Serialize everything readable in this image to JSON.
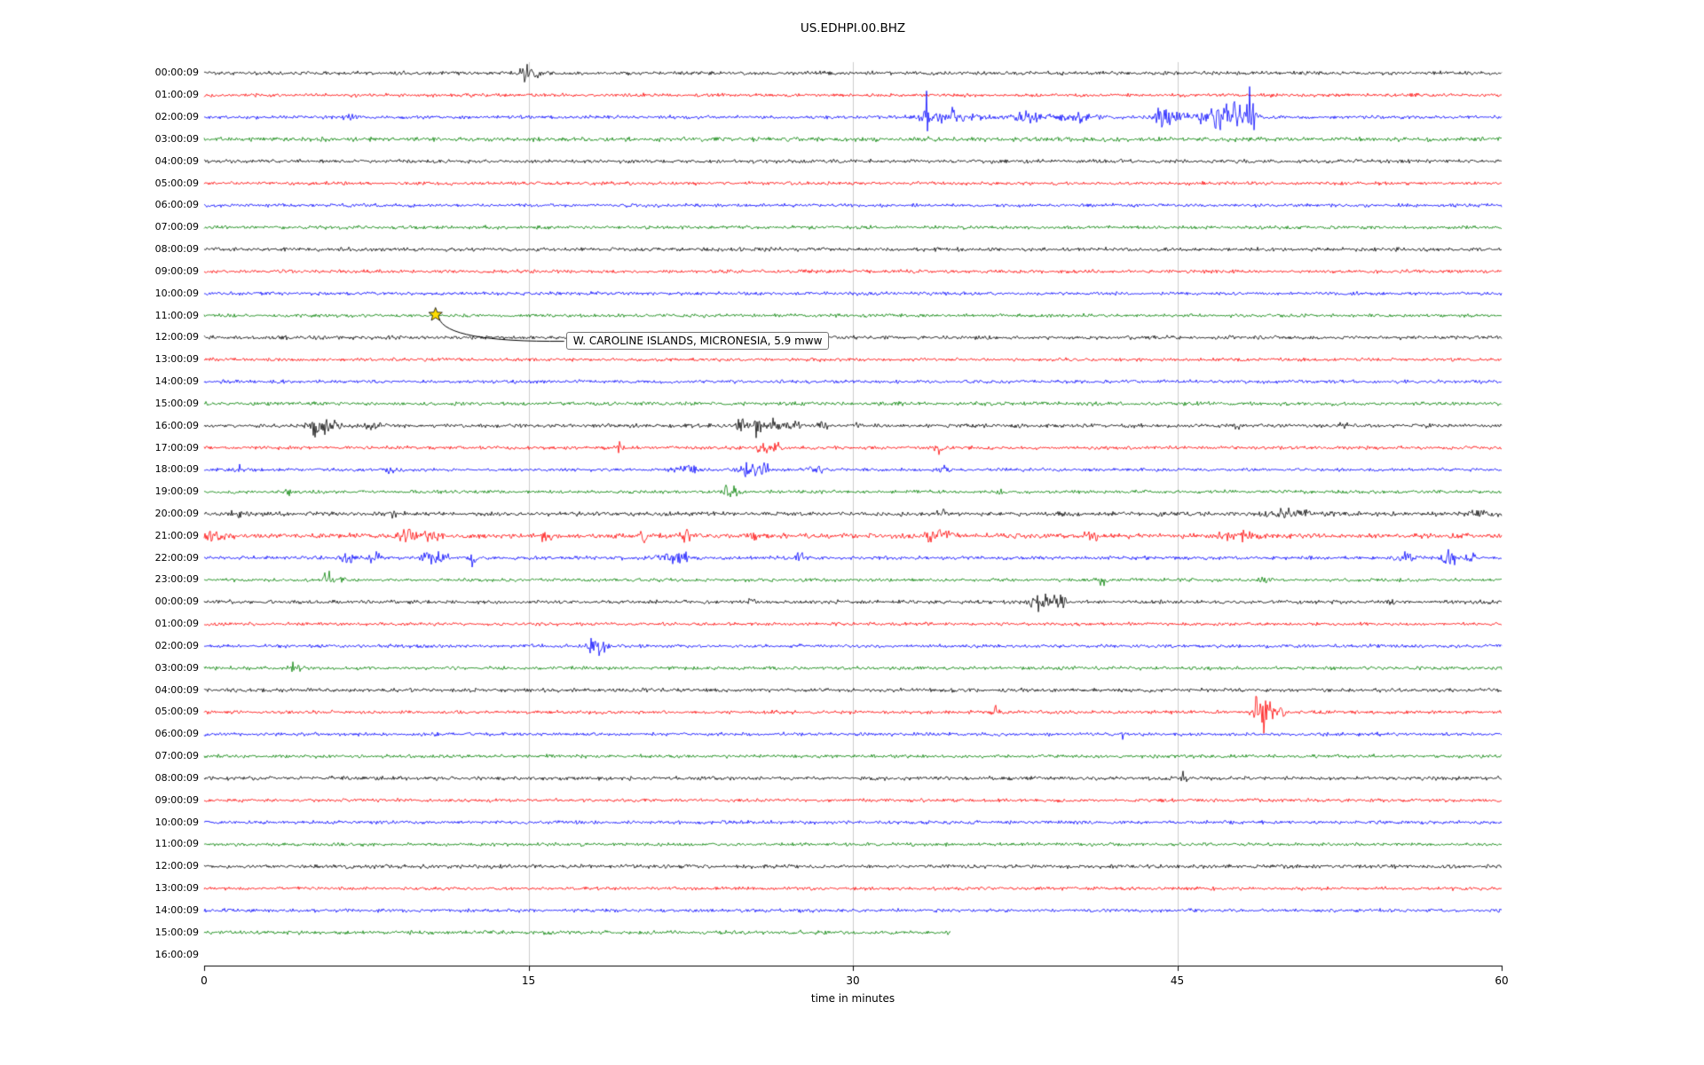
{
  "page_title": "US.EDHPI.00.BHZ",
  "chart_data": {
    "type": "line",
    "subtype": "helicorder-seismogram-dayplot",
    "title": "US.EDHPI.00.BHZ",
    "xlabel": "time in minutes",
    "xlim": [
      0,
      60
    ],
    "xticks": [
      0,
      15,
      30,
      45,
      60
    ],
    "grid": "vertical-light",
    "color_cycle": [
      "#000000",
      "#ff0000",
      "#0000ff",
      "#008000"
    ],
    "annotation": {
      "text": "W. CAROLINE ISLANDS, MICRONESIA, 5.9 mww",
      "marker": "yellow-star",
      "marker_color": "#ffdd00",
      "marker_row_index": 11,
      "marker_x_minutes": 10.7
    },
    "rows": [
      {
        "label": "00:00:09",
        "color": "#000000",
        "noise": 2.0,
        "end": 60,
        "events": [
          [
            14.9,
            0.5,
            10
          ],
          [
            15.35,
            0.3,
            6
          ]
        ]
      },
      {
        "label": "01:00:09",
        "color": "#ff0000",
        "noise": 1.8,
        "end": 60,
        "events": []
      },
      {
        "label": "02:00:09",
        "color": "#0000ff",
        "noise": 1.8,
        "end": 60,
        "events": [
          [
            6.7,
            0.6,
            4
          ],
          [
            33.4,
            0.25,
            24
          ],
          [
            34.5,
            2.5,
            7
          ],
          [
            38.2,
            1.5,
            5
          ],
          [
            40.5,
            2.0,
            4
          ],
          [
            44.3,
            0.8,
            12
          ],
          [
            45.5,
            1.5,
            6
          ],
          [
            47.3,
            1.8,
            16
          ],
          [
            48.4,
            0.4,
            26
          ]
        ]
      },
      {
        "label": "03:00:09",
        "color": "#008000",
        "noise": 2.3,
        "end": 60,
        "events": []
      },
      {
        "label": "04:00:09",
        "color": "#000000",
        "noise": 2.0,
        "end": 60,
        "events": []
      },
      {
        "label": "05:00:09",
        "color": "#ff0000",
        "noise": 1.8,
        "end": 60,
        "events": []
      },
      {
        "label": "06:00:09",
        "color": "#0000ff",
        "noise": 1.8,
        "end": 60,
        "events": []
      },
      {
        "label": "07:00:09",
        "color": "#008000",
        "noise": 1.8,
        "end": 60,
        "events": []
      },
      {
        "label": "08:00:09",
        "color": "#000000",
        "noise": 2.0,
        "end": 60,
        "events": []
      },
      {
        "label": "09:00:09",
        "color": "#ff0000",
        "noise": 1.8,
        "end": 60,
        "events": []
      },
      {
        "label": "10:00:09",
        "color": "#0000ff",
        "noise": 1.8,
        "end": 60,
        "events": []
      },
      {
        "label": "11:00:09",
        "color": "#008000",
        "noise": 1.8,
        "end": 60,
        "events": []
      },
      {
        "label": "12:00:09",
        "color": "#000000",
        "noise": 2.0,
        "end": 60,
        "events": []
      },
      {
        "label": "13:00:09",
        "color": "#ff0000",
        "noise": 1.8,
        "end": 60,
        "events": []
      },
      {
        "label": "14:00:09",
        "color": "#0000ff",
        "noise": 1.8,
        "end": 60,
        "events": []
      },
      {
        "label": "15:00:09",
        "color": "#008000",
        "noise": 2.0,
        "end": 60,
        "events": []
      },
      {
        "label": "16:00:09",
        "color": "#000000",
        "noise": 2.0,
        "end": 60,
        "events": [
          [
            5.0,
            0.3,
            22
          ],
          [
            5.6,
            1.2,
            6
          ],
          [
            7.8,
            0.6,
            5
          ],
          [
            24.8,
            0.5,
            8
          ],
          [
            25.6,
            0.4,
            12
          ],
          [
            26.3,
            0.5,
            10
          ],
          [
            27.2,
            0.8,
            6
          ],
          [
            28.6,
            0.4,
            5
          ],
          [
            30.2,
            0.3,
            4
          ],
          [
            47.8,
            0.4,
            4
          ],
          [
            52.6,
            0.4,
            4
          ]
        ]
      },
      {
        "label": "17:00:09",
        "color": "#ff0000",
        "noise": 1.8,
        "end": 60,
        "events": [
          [
            19.2,
            0.3,
            5
          ],
          [
            25.8,
            0.5,
            9
          ],
          [
            26.5,
            0.5,
            5
          ],
          [
            33.9,
            0.4,
            7
          ]
        ]
      },
      {
        "label": "18:00:09",
        "color": "#0000ff",
        "noise": 1.8,
        "end": 60,
        "events": [
          [
            1.6,
            0.5,
            4
          ],
          [
            8.6,
            0.5,
            4
          ],
          [
            22.4,
            1.2,
            5
          ],
          [
            25.2,
            1.0,
            9
          ],
          [
            25.9,
            0.4,
            7
          ],
          [
            28.4,
            0.6,
            4
          ],
          [
            34.2,
            0.6,
            6
          ]
        ]
      },
      {
        "label": "19:00:09",
        "color": "#008000",
        "noise": 1.8,
        "end": 60,
        "events": [
          [
            3.9,
            0.3,
            4
          ],
          [
            24.2,
            0.3,
            11
          ],
          [
            24.6,
            0.5,
            5
          ],
          [
            36.8,
            0.3,
            3
          ]
        ]
      },
      {
        "label": "20:00:09",
        "color": "#000000",
        "noise": 2.2,
        "end": 60,
        "events": [
          [
            1.6,
            0.6,
            4
          ],
          [
            8.8,
            0.5,
            5
          ],
          [
            34.1,
            0.5,
            5
          ],
          [
            44.0,
            0.4,
            3
          ],
          [
            50.5,
            2.2,
            4
          ],
          [
            58.9,
            1.2,
            5
          ]
        ]
      },
      {
        "label": "21:00:09",
        "color": "#ff0000",
        "noise": 2.6,
        "end": 60,
        "events": [
          [
            0.6,
            1.0,
            5
          ],
          [
            9.3,
            0.8,
            5
          ],
          [
            10.4,
            1.0,
            6
          ],
          [
            15.8,
            0.5,
            6
          ],
          [
            20.3,
            0.3,
            9
          ],
          [
            22.3,
            0.4,
            6
          ],
          [
            25.4,
            0.5,
            4
          ],
          [
            33.9,
            1.5,
            6
          ],
          [
            41.0,
            0.8,
            4
          ],
          [
            47.8,
            1.5,
            5
          ],
          [
            58.0,
            0.5,
            3
          ]
        ]
      },
      {
        "label": "22:00:09",
        "color": "#0000ff",
        "noise": 1.9,
        "end": 60,
        "events": [
          [
            6.5,
            0.8,
            5
          ],
          [
            7.9,
            0.6,
            6
          ],
          [
            10.6,
            1.2,
            6
          ],
          [
            12.4,
            0.4,
            7
          ],
          [
            21.8,
            1.5,
            6
          ],
          [
            27.5,
            0.5,
            4
          ],
          [
            55.6,
            1.0,
            5
          ],
          [
            57.6,
            0.8,
            8
          ],
          [
            58.6,
            0.5,
            5
          ]
        ]
      },
      {
        "label": "23:00:09",
        "color": "#008000",
        "noise": 1.8,
        "end": 60,
        "events": [
          [
            5.7,
            0.35,
            13
          ],
          [
            6.3,
            0.5,
            4
          ],
          [
            41.5,
            0.5,
            4
          ],
          [
            49.0,
            0.4,
            3
          ]
        ]
      },
      {
        "label": "00:00:09",
        "color": "#000000",
        "noise": 2.0,
        "end": 60,
        "events": [
          [
            25.3,
            0.3,
            7
          ],
          [
            38.7,
            0.8,
            9
          ],
          [
            39.5,
            0.6,
            10
          ],
          [
            54.9,
            0.2,
            5
          ]
        ]
      },
      {
        "label": "01:00:09",
        "color": "#ff0000",
        "noise": 1.8,
        "end": 60,
        "events": []
      },
      {
        "label": "02:00:09",
        "color": "#0000ff",
        "noise": 1.8,
        "end": 60,
        "events": [
          [
            17.9,
            0.5,
            8
          ],
          [
            18.4,
            0.6,
            9
          ]
        ]
      },
      {
        "label": "03:00:09",
        "color": "#008000",
        "noise": 1.8,
        "end": 60,
        "events": [
          [
            4.2,
            0.5,
            6
          ]
        ]
      },
      {
        "label": "04:00:09",
        "color": "#000000",
        "noise": 2.0,
        "end": 60,
        "events": []
      },
      {
        "label": "05:00:09",
        "color": "#ff0000",
        "noise": 1.8,
        "end": 60,
        "events": [
          [
            36.6,
            0.4,
            7
          ],
          [
            48.6,
            0.3,
            10
          ],
          [
            49.1,
            0.8,
            16
          ],
          [
            49.8,
            0.4,
            8
          ]
        ]
      },
      {
        "label": "06:00:09",
        "color": "#0000ff",
        "noise": 1.8,
        "end": 60,
        "events": [
          [
            42.5,
            0.2,
            4
          ]
        ]
      },
      {
        "label": "07:00:09",
        "color": "#008000",
        "noise": 1.8,
        "end": 60,
        "events": []
      },
      {
        "label": "08:00:09",
        "color": "#000000",
        "noise": 2.0,
        "end": 60,
        "events": [
          [
            45.3,
            0.3,
            8
          ]
        ]
      },
      {
        "label": "09:00:09",
        "color": "#ff0000",
        "noise": 1.8,
        "end": 60,
        "events": []
      },
      {
        "label": "10:00:09",
        "color": "#0000ff",
        "noise": 1.8,
        "end": 60,
        "events": []
      },
      {
        "label": "11:00:09",
        "color": "#008000",
        "noise": 1.8,
        "end": 60,
        "events": []
      },
      {
        "label": "12:00:09",
        "color": "#000000",
        "noise": 2.0,
        "end": 60,
        "events": [
          [
            30.6,
            0.3,
            4
          ]
        ]
      },
      {
        "label": "13:00:09",
        "color": "#ff0000",
        "noise": 1.8,
        "end": 60,
        "events": []
      },
      {
        "label": "14:00:09",
        "color": "#0000ff",
        "noise": 1.8,
        "end": 60,
        "events": []
      },
      {
        "label": "15:00:09",
        "color": "#008000",
        "noise": 2.0,
        "end": 34.5,
        "events": []
      },
      {
        "label": "16:00:09",
        "color": "#000000",
        "noise": 0,
        "end": 0,
        "events": []
      }
    ]
  }
}
